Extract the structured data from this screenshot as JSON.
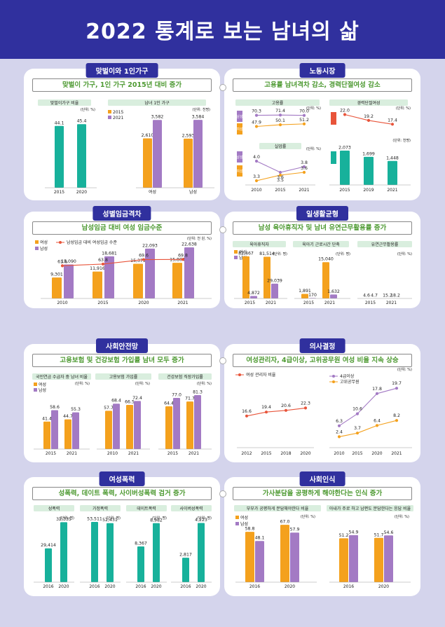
{
  "page_title": "2022 통계로 보는 남녀의 삶",
  "colors": {
    "female": "#f4a11d",
    "male": "#a37ac4",
    "teal": "#17b19b",
    "line": "#e8543a",
    "title_bg": "#30309e",
    "headline": "#4e9a32"
  },
  "sections": [
    {
      "tab": "맞벌이와 1인가구",
      "headline": "맞벌이 가구, 1인 가구 2015년 대비 증가"
    },
    {
      "tab": "노동시장",
      "headline": "고용률 남녀격차 감소, 경력단절여성 감소"
    },
    {
      "tab": "성별임금격차",
      "headline": "남성임금 대비 여성 임금수준"
    },
    {
      "tab": "일생활균형",
      "headline": "남성 육아휴직자 및 남녀 유연근무활용률 증가"
    },
    {
      "tab": "사회안전망",
      "headline": "고용보험 및 건강보험 가입률 남녀 모두 증가"
    },
    {
      "tab": "의사결정",
      "headline": "여성관리자, 4급이상, 고위공무원 여성 비율 지속 상승"
    },
    {
      "tab": "여성폭력",
      "headline": "성폭력, 데이트 폭력, 사이버성폭력 검거 증가"
    },
    {
      "tab": "사회인식",
      "headline": "가사분담을 공평하게 해야한다는 인식 증가"
    }
  ],
  "legend": {
    "female": "여성",
    "male": "남성",
    "y2015": "2015",
    "y2021": "2021",
    "wage_ratio": "남성임금 대비 여성임금 수준",
    "female_mgr": "여성 관리자 비율",
    "grade4": "4급이상",
    "senior": "고위공무원"
  },
  "chart_data": [
    {
      "type": "bar",
      "title": "맞벌이가구 비율",
      "unit": "(단위: %)",
      "categories": [
        "2015",
        "2020"
      ],
      "values": [
        44.1,
        45.4
      ]
    },
    {
      "type": "bar",
      "title": "남녀 1인 가구",
      "unit": "(단위: 천명)",
      "categories": [
        "여성",
        "남성"
      ],
      "series": [
        {
          "name": "2015",
          "values": [
            2610,
            2593
          ]
        },
        {
          "name": "2021",
          "values": [
            3582,
            3584
          ]
        }
      ]
    },
    {
      "type": "line",
      "title": "고용률",
      "unit": "(단위: %)",
      "x": [
        "2010",
        "2015",
        "2021"
      ],
      "series": [
        {
          "name": "남성",
          "values": [
            70.3,
            71.4,
            70.0
          ]
        },
        {
          "name": "여성",
          "values": [
            47.9,
            50.1,
            51.2
          ]
        }
      ]
    },
    {
      "type": "line",
      "title": "실업률",
      "unit": "(단위: %)",
      "x": [
        "2010",
        "2015",
        "2021"
      ],
      "series": [
        {
          "name": "남성",
          "values": [
            4.0,
            3.6,
            3.8
          ]
        },
        {
          "name": "여성",
          "values": [
            3.3,
            3.5,
            3.6
          ]
        }
      ]
    },
    {
      "type": "line",
      "title": "경력단절여성",
      "unit": "(단위: %)",
      "x": [
        "2015",
        "2019",
        "2021"
      ],
      "series": [
        {
          "name": "비율",
          "values": [
            22.0,
            19.2,
            17.4
          ]
        }
      ]
    },
    {
      "type": "bar",
      "title": "",
      "unit": "(단위: 천명)",
      "categories": [
        "2015",
        "2019",
        "2021"
      ],
      "series": [
        {
          "name": "규모",
          "values": [
            2073,
            1699,
            1448
          ]
        }
      ]
    },
    {
      "type": "bar",
      "title": "성별임금격차",
      "unit": "(단위: 천 원, %)",
      "categories": [
        "2010",
        "2015",
        "2020",
        "2021"
      ],
      "series": [
        {
          "name": "여성",
          "values": [
            9301,
            11916,
            15375,
            15804
          ]
        },
        {
          "name": "남성",
          "values": [
            15090,
            18681,
            22093,
            22638
          ]
        },
        {
          "name": "남성임금 대비 여성임금 수준",
          "values": [
            61.6,
            63.8,
            69.6,
            69.8
          ]
        }
      ]
    },
    {
      "type": "bar",
      "title": "육아휴직자",
      "unit": "(단위: 명)",
      "categories": [
        "2015",
        "2021"
      ],
      "series": [
        {
          "name": "여성",
          "values": [
            82467,
            81514
          ]
        },
        {
          "name": "남성",
          "values": [
            4872,
            29039
          ]
        }
      ]
    },
    {
      "type": "bar",
      "title": "육아기 근로시간 단축",
      "unit": "(단위: 명)",
      "categories": [
        "2015",
        "2021"
      ],
      "series": [
        {
          "name": "여성",
          "values": [
            1891,
            15040
          ]
        },
        {
          "name": "남성",
          "values": [
            170,
            1632
          ]
        }
      ]
    },
    {
      "type": "bar",
      "title": "유연근무활용률",
      "unit": "(단위: %)",
      "categories": [
        "2015",
        "2021"
      ],
      "series": [
        {
          "name": "여성",
          "values": [
            4.6,
            15.2
          ]
        },
        {
          "name": "남성",
          "values": [
            4.7,
            18.2
          ]
        }
      ]
    },
    {
      "type": "bar",
      "title": "국민연금 수급자 중 남녀 비율",
      "unit": "(단위: %)",
      "categories": [
        "2015",
        "2021"
      ],
      "series": [
        {
          "name": "여성",
          "values": [
            41.4,
            44.7
          ]
        },
        {
          "name": "남성",
          "values": [
            58.6,
            55.3
          ]
        }
      ]
    },
    {
      "type": "bar",
      "title": "고용보험 가입률",
      "unit": "(단위: %)",
      "categories": [
        "2010",
        "2021"
      ],
      "series": [
        {
          "name": "여성",
          "values": [
            57.7,
            66.5
          ]
        },
        {
          "name": "남성",
          "values": [
            68.4,
            72.4
          ]
        }
      ]
    },
    {
      "type": "bar",
      "title": "건강보험 직장가입률",
      "unit": "(단위: %)",
      "categories": [
        "2015",
        "2021"
      ],
      "series": [
        {
          "name": "여성",
          "values": [
            64.4,
            71.7
          ]
        },
        {
          "name": "남성",
          "values": [
            77.0,
            81.3
          ]
        }
      ]
    },
    {
      "type": "line",
      "title": "",
      "unit": "(단위: %)",
      "x": [
        "2012",
        "2015",
        "2018",
        "2020"
      ],
      "series": [
        {
          "name": "여성 관리자 비율",
          "values": [
            16.6,
            19.4,
            20.6,
            22.3
          ]
        }
      ]
    },
    {
      "type": "line",
      "title": "",
      "unit": "(단위: %)",
      "x": [
        "2010",
        "2015",
        "2020",
        "2021"
      ],
      "series": [
        {
          "name": "4급이상",
          "values": [
            6.3,
            10.6,
            17.8,
            19.7
          ]
        },
        {
          "name": "고위공무원",
          "values": [
            2.4,
            3.7,
            6.4,
            8.2
          ]
        }
      ]
    },
    {
      "type": "bar",
      "title": "성폭력",
      "unit": "(단위: 명)",
      "categories": [
        "2016",
        "2020"
      ],
      "values": [
        29414,
        32335
      ]
    },
    {
      "type": "bar",
      "title": "가정폭력",
      "unit": "(단위: 명)",
      "categories": [
        "2016",
        "2020"
      ],
      "values": [
        53511,
        52431
      ]
    },
    {
      "type": "bar",
      "title": "데이트폭력",
      "unit": "(단위: 명)",
      "categories": [
        "2016",
        "2020"
      ],
      "values": [
        8367,
        8982
      ]
    },
    {
      "type": "bar",
      "title": "사이버성폭력",
      "unit": "(단위: 명)",
      "categories": [
        "2016",
        "2020"
      ],
      "values": [
        2817,
        4223
      ]
    },
    {
      "type": "bar",
      "title": "부부가 공평하게 분담해야한다 비율",
      "unit": "(단위: %)",
      "categories": [
        "2016",
        "2020"
      ],
      "series": [
        {
          "name": "여성",
          "values": [
            58.8,
            67.0
          ]
        },
        {
          "name": "남성",
          "values": [
            48.1,
            57.9
          ]
        }
      ]
    },
    {
      "type": "bar",
      "title": "아내가 주로 하고 남편도 분담한다는 응답 비율",
      "unit": "(단위: %)",
      "categories": [
        "2016",
        "2020"
      ],
      "series": [
        {
          "name": "여성",
          "values": [
            51.2,
            51.7
          ]
        },
        {
          "name": "남성",
          "values": [
            54.9,
            54.6
          ]
        }
      ]
    }
  ]
}
